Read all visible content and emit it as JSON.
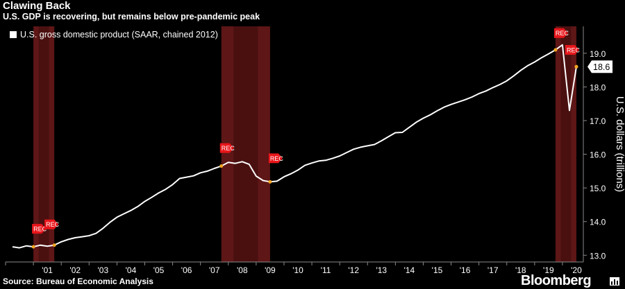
{
  "header": {
    "title": "Clawing Back",
    "subtitle": "U.S. GDP is recovering, but remains below pre-pandemic peak"
  },
  "footer": {
    "source": "Source: Bureau of Economic Analysis",
    "brand": "Bloomberg"
  },
  "colors": {
    "background": "#000000",
    "line": "#ffffff",
    "recession_shading": "#6e1a1a",
    "rec_flag": "#e8161b",
    "axis": "#8a8a8a"
  },
  "chart_data": {
    "type": "line",
    "title": "Clawing Back",
    "subtitle": "U.S. GDP is recovering, but remains below pre-pandemic peak",
    "ylabel": "U.S. dollars (trillions)",
    "ylim": [
      12.8,
      19.8
    ],
    "y_ticks": [
      "13.0",
      "14.0",
      "15.0",
      "16.0",
      "17.0",
      "18.0",
      "19.0"
    ],
    "x_ticks": [
      "'01",
      "'02",
      "'03",
      "'04",
      "'05",
      "'06",
      "'07",
      "'08",
      "'09",
      "'10",
      "'11",
      "'12",
      "'13",
      "'14",
      "'15",
      "'16",
      "'17",
      "'18",
      "'19",
      "'20"
    ],
    "legend_position": "top-left",
    "grid": false,
    "series": [
      {
        "name": "U.S. gross domestic product (SAAR, chained 2012)",
        "x": [
          2000.25,
          2000.5,
          2000.75,
          2001.0,
          2001.25,
          2001.5,
          2001.75,
          2002.0,
          2002.25,
          2002.5,
          2002.75,
          2003.0,
          2003.25,
          2003.5,
          2003.75,
          2004.0,
          2004.25,
          2004.5,
          2004.75,
          2005.0,
          2005.25,
          2005.5,
          2005.75,
          2006.0,
          2006.25,
          2006.5,
          2006.75,
          2007.0,
          2007.25,
          2007.5,
          2007.75,
          2008.0,
          2008.25,
          2008.5,
          2008.75,
          2009.0,
          2009.25,
          2009.5,
          2009.75,
          2010.0,
          2010.25,
          2010.5,
          2010.75,
          2011.0,
          2011.25,
          2011.5,
          2011.75,
          2012.0,
          2012.25,
          2012.5,
          2012.75,
          2013.0,
          2013.25,
          2013.5,
          2013.75,
          2014.0,
          2014.25,
          2014.5,
          2014.75,
          2015.0,
          2015.25,
          2015.5,
          2015.75,
          2016.0,
          2016.25,
          2016.5,
          2016.75,
          2017.0,
          2017.25,
          2017.5,
          2017.75,
          2018.0,
          2018.25,
          2018.5,
          2018.75,
          2019.0,
          2019.25,
          2019.5,
          2019.75,
          2020.0,
          2020.25,
          2020.5
        ],
        "values": [
          13.25,
          13.22,
          13.28,
          13.25,
          13.3,
          13.27,
          13.3,
          13.4,
          13.47,
          13.52,
          13.55,
          13.58,
          13.65,
          13.8,
          13.98,
          14.13,
          14.23,
          14.33,
          14.45,
          14.6,
          14.72,
          14.85,
          14.96,
          15.1,
          15.28,
          15.32,
          15.36,
          15.45,
          15.5,
          15.58,
          15.65,
          15.76,
          15.73,
          15.78,
          15.7,
          15.35,
          15.22,
          15.18,
          15.2,
          15.33,
          15.42,
          15.53,
          15.67,
          15.74,
          15.8,
          15.82,
          15.88,
          15.95,
          16.05,
          16.15,
          16.21,
          16.25,
          16.29,
          16.4,
          16.52,
          16.64,
          16.65,
          16.8,
          16.95,
          17.07,
          17.17,
          17.29,
          17.4,
          17.48,
          17.55,
          17.62,
          17.7,
          17.8,
          17.88,
          17.98,
          18.07,
          18.18,
          18.33,
          18.49,
          18.63,
          18.74,
          18.87,
          18.98,
          19.1,
          19.25,
          17.3,
          18.6
        ]
      }
    ],
    "last_value_label": "18.6",
    "recessions": [
      {
        "start": 2001.0,
        "end": 2001.75,
        "start_flag": "REC",
        "end_flag": "REC"
      },
      {
        "start": 2007.75,
        "end": 2009.5,
        "start_flag": "REC",
        "end_flag": "REC"
      },
      {
        "start": 2019.75,
        "end": 2020.5,
        "start_flag": "REC",
        "end_flag": "REC"
      }
    ],
    "xlim": [
      2000.0,
      2020.75
    ]
  }
}
